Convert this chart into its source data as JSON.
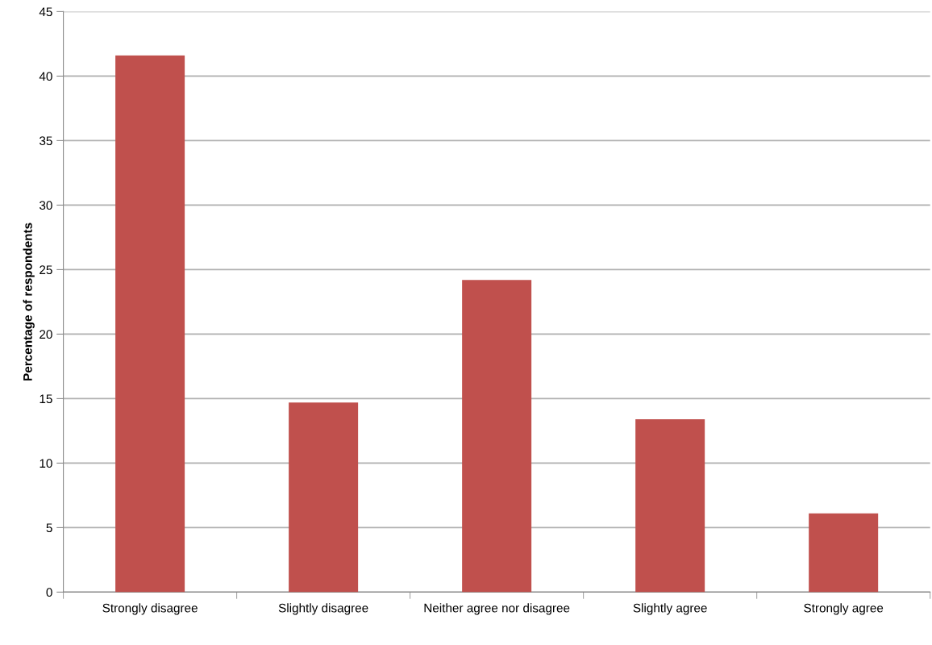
{
  "chart_data": {
    "type": "bar",
    "ylabel": "Percentage of respondents",
    "categories": [
      "Strongly disagree",
      "Slightly disagree",
      "Neither agree nor disagree",
      "Slightly agree",
      "Strongly agree"
    ],
    "values": [
      41.6,
      14.7,
      24.2,
      13.4,
      6.1
    ],
    "color": "#c0504d",
    "ylim": [
      0,
      45
    ],
    "yticks": [
      0,
      5,
      10,
      15,
      20,
      25,
      30,
      35,
      40,
      45
    ],
    "grid": "y"
  }
}
